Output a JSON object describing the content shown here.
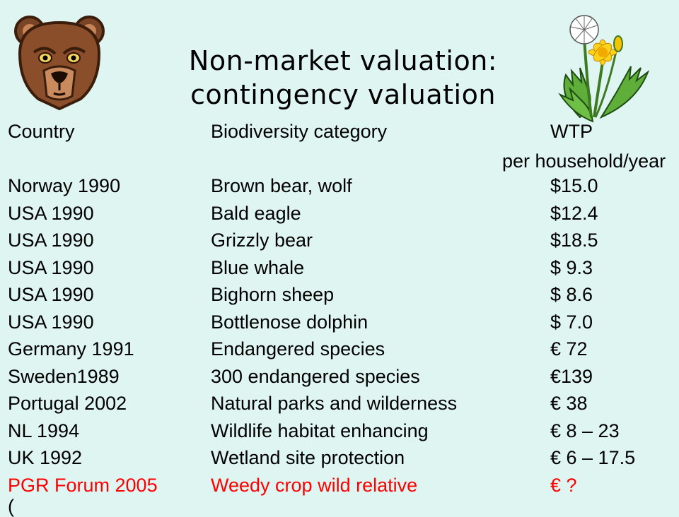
{
  "slide": {
    "title_line1": "Non-market valuation:",
    "title_line2": "contingency valuation"
  },
  "table": {
    "headers": {
      "country": "Country",
      "category": "Biodiversity category",
      "wtp": "WTP",
      "wtp_sub": "per household/year"
    },
    "rows": [
      {
        "country": "Norway 1990",
        "category": "Brown bear, wolf",
        "wtp": "$15.0"
      },
      {
        "country": "USA 1990",
        "category": "Bald eagle",
        "wtp": "$12.4"
      },
      {
        "country": "USA 1990",
        "category": "Grizzly bear",
        "wtp": "$18.5"
      },
      {
        "country": "USA 1990",
        "category": "Blue whale",
        "wtp": "$  9.3"
      },
      {
        "country": "USA 1990",
        "category": "Bighorn sheep",
        "wtp": "$  8.6"
      },
      {
        "country": "USA 1990",
        "category": "Bottlenose dolphin",
        "wtp": "$  7.0"
      },
      {
        "country": "Germany 1991",
        "category": "Endangered species",
        "wtp": "€  72"
      },
      {
        "country": "Sweden1989",
        "category": "300 endangered species",
        "wtp": "€139"
      },
      {
        "country": "Portugal 2002",
        "category": "Natural parks and wilderness",
        "wtp": "€  38"
      },
      {
        "country": "NL 1994",
        "category": "Wildlife habitat enhancing",
        "wtp": "€    8 – 23"
      },
      {
        "country": "UK 1992",
        "category": "Wetland site protection",
        "wtp": "€    6 – 17.5"
      },
      {
        "country": "PGR Forum 2005",
        "category": "Weedy crop wild relative",
        "wtp": "€    ?"
      }
    ],
    "trailing": "("
  },
  "colors": {
    "background": "#dff5f1",
    "highlight_row": "#ff0000"
  },
  "images": {
    "left": "bear-head-illustration",
    "right": "dandelion-illustration"
  }
}
